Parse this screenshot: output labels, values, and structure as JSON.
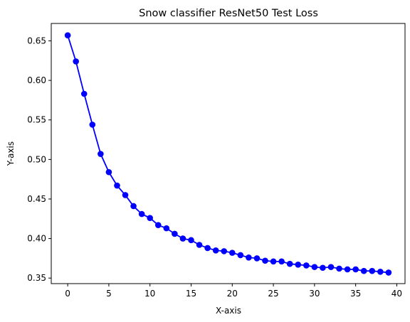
{
  "chart_data": {
    "type": "line",
    "title": "Snow classifier ResNet50 Test Loss",
    "xlabel": "X-axis",
    "ylabel": "Y-axis",
    "xlim": [
      -2,
      41
    ],
    "ylim": [
      0.343,
      0.672
    ],
    "x_ticks": [
      0,
      5,
      10,
      15,
      20,
      25,
      30,
      35,
      40
    ],
    "x_tick_labels": [
      "0",
      "5",
      "10",
      "15",
      "20",
      "25",
      "30",
      "35",
      "40"
    ],
    "y_ticks": [
      0.35,
      0.4,
      0.45,
      0.5,
      0.55,
      0.6,
      0.65
    ],
    "y_tick_labels": [
      "0.35",
      "0.40",
      "0.45",
      "0.50",
      "0.55",
      "0.60",
      "0.65"
    ],
    "grid": false,
    "marker": "circle",
    "color": "#0000ff",
    "series": [
      {
        "x": [
          0,
          1,
          2,
          3,
          4,
          5,
          6,
          7,
          8,
          9,
          10,
          11,
          12,
          13,
          14,
          15,
          16,
          17,
          18,
          19,
          20,
          21,
          22,
          23,
          24,
          25,
          26,
          27,
          28,
          29,
          30,
          31,
          32,
          33,
          34,
          35,
          36,
          37,
          38,
          39
        ],
        "values": [
          0.657,
          0.624,
          0.583,
          0.544,
          0.507,
          0.484,
          0.467,
          0.455,
          0.441,
          0.431,
          0.426,
          0.417,
          0.413,
          0.406,
          0.4,
          0.398,
          0.392,
          0.388,
          0.385,
          0.384,
          0.382,
          0.379,
          0.376,
          0.375,
          0.372,
          0.371,
          0.371,
          0.368,
          0.367,
          0.366,
          0.364,
          0.363,
          0.364,
          0.362,
          0.361,
          0.361,
          0.359,
          0.359,
          0.358,
          0.357
        ]
      }
    ]
  }
}
